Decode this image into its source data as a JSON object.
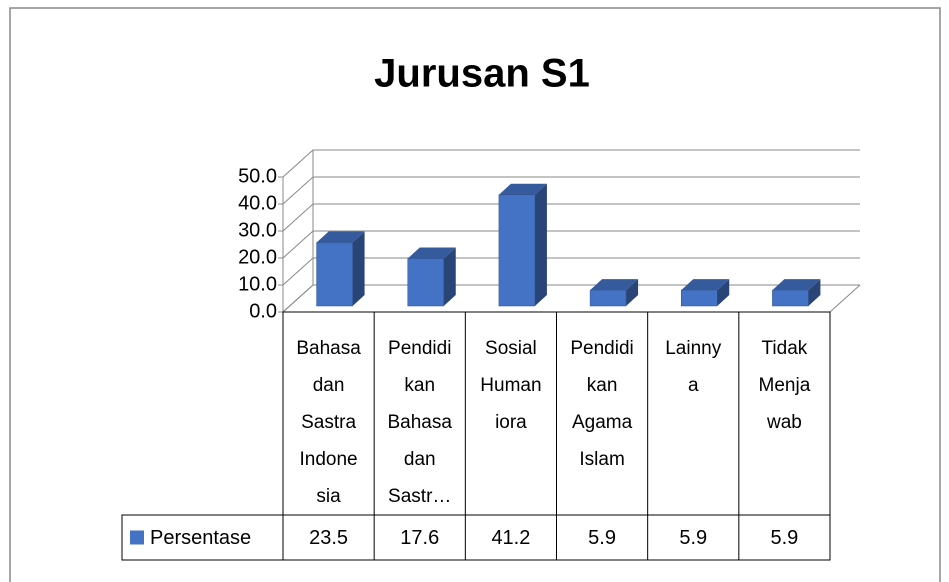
{
  "chart_data": {
    "type": "bar3d",
    "title": "Jurusan S1",
    "categories": [
      "Bahasa\ndan\nSastra\nIndone\nsia",
      "Pendidi\nkan\nBahasa\ndan\nSastr…",
      "Sosial\nHuman\niora",
      "Pendidi\nkan\nAgama\nIslam",
      "Lainny\na",
      "Tidak\nMenja\nwab"
    ],
    "series": [
      {
        "name": "Persentase",
        "color": "#4472c4",
        "values": [
          23.5,
          17.6,
          41.2,
          5.9,
          5.9,
          5.9
        ]
      }
    ],
    "ylim": [
      0,
      50
    ],
    "yticks": [
      {
        "value": 0,
        "label": "0.0"
      },
      {
        "value": 10,
        "label": "10.0"
      },
      {
        "value": 20,
        "label": "20.0"
      },
      {
        "value": 30,
        "label": "30.0"
      },
      {
        "value": 40,
        "label": "40.0"
      },
      {
        "value": 50,
        "label": "50.0"
      }
    ],
    "grid": true,
    "data_table": true
  }
}
